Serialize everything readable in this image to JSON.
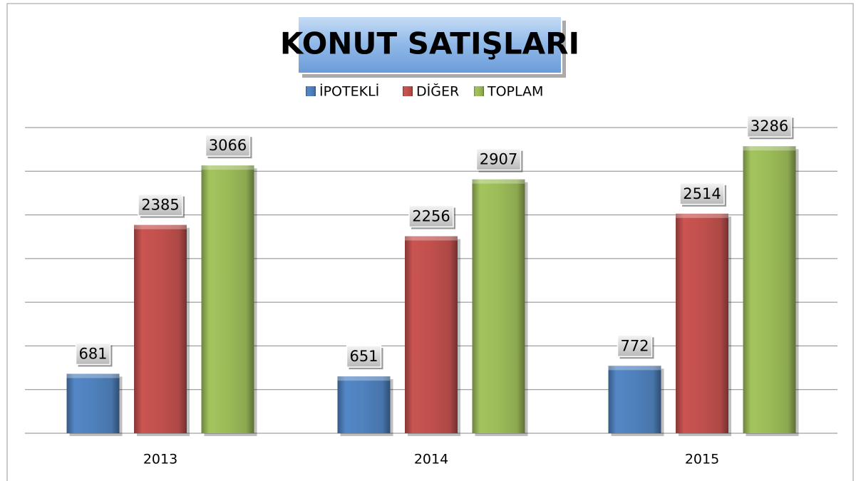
{
  "chart_data": {
    "type": "bar",
    "title": "KONUT SATIŞLARI",
    "categories": [
      "2013",
      "2014",
      "2015"
    ],
    "series": [
      {
        "name": "İPOTEKLİ",
        "color": "#4f81bd",
        "values": [
          681,
          651,
          772
        ]
      },
      {
        "name": "DİĞER",
        "color": "#c0504d",
        "values": [
          2385,
          2256,
          2514
        ]
      },
      {
        "name": "TOPLAM",
        "color": "#9bbb59",
        "values": [
          3066,
          2907,
          3286
        ]
      }
    ],
    "ylim": [
      0,
      3500
    ],
    "yticks": [
      0,
      500,
      1000,
      1500,
      2000,
      2500,
      3000,
      3500
    ],
    "grid": true,
    "legend": "top"
  }
}
